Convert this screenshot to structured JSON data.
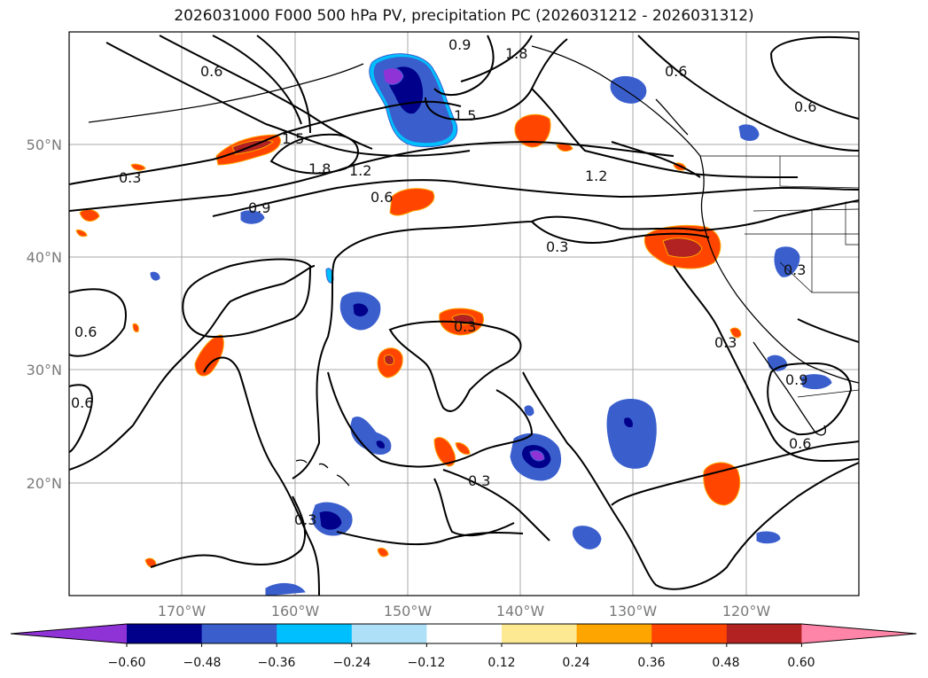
{
  "title": "2026031000 F000 500 hPa PV, precipitation PC (2026031212 - 2026031312)",
  "map": {
    "lon_labels": [
      "170°W",
      "160°W",
      "150°W",
      "140°W",
      "130°W",
      "120°W"
    ],
    "lat_labels": [
      "50°N",
      "40°N",
      "30°N",
      "20°N"
    ],
    "contour_labels": [
      "0.6",
      "0.9",
      "1.8",
      "1.5",
      "0.6",
      "1.5",
      "0.3",
      "1.8",
      "1.2",
      "0.9",
      "0.6",
      "1.2",
      "0.3",
      "0.3",
      "0.6",
      "0.3",
      "0.6",
      "0.3",
      "0.3",
      "0.9",
      "0.6",
      "0.6",
      "0.3"
    ]
  },
  "colorbar": {
    "ticks": [
      "−0.60",
      "−0.48",
      "−0.36",
      "−0.24",
      "−0.12",
      "0.12",
      "0.24",
      "0.36",
      "0.48",
      "0.60"
    ],
    "colors": [
      "#8f33d6",
      "#00008b",
      "#3a5fcd",
      "#00bfff",
      "#aee0f8",
      "#ffffff",
      "#fde992",
      "#ffa500",
      "#ff4500",
      "#b22222",
      "#ff85a8"
    ]
  },
  "palette": {
    "neg_strong": "#8f33d6",
    "neg_dark": "#00008b",
    "neg_mid": "#3a5fcd",
    "neg_light": "#00bfff",
    "pos_light": "#fde992",
    "pos_mid": "#ffa500",
    "pos_strong": "#ff4500",
    "pos_dark": "#b22222"
  }
}
